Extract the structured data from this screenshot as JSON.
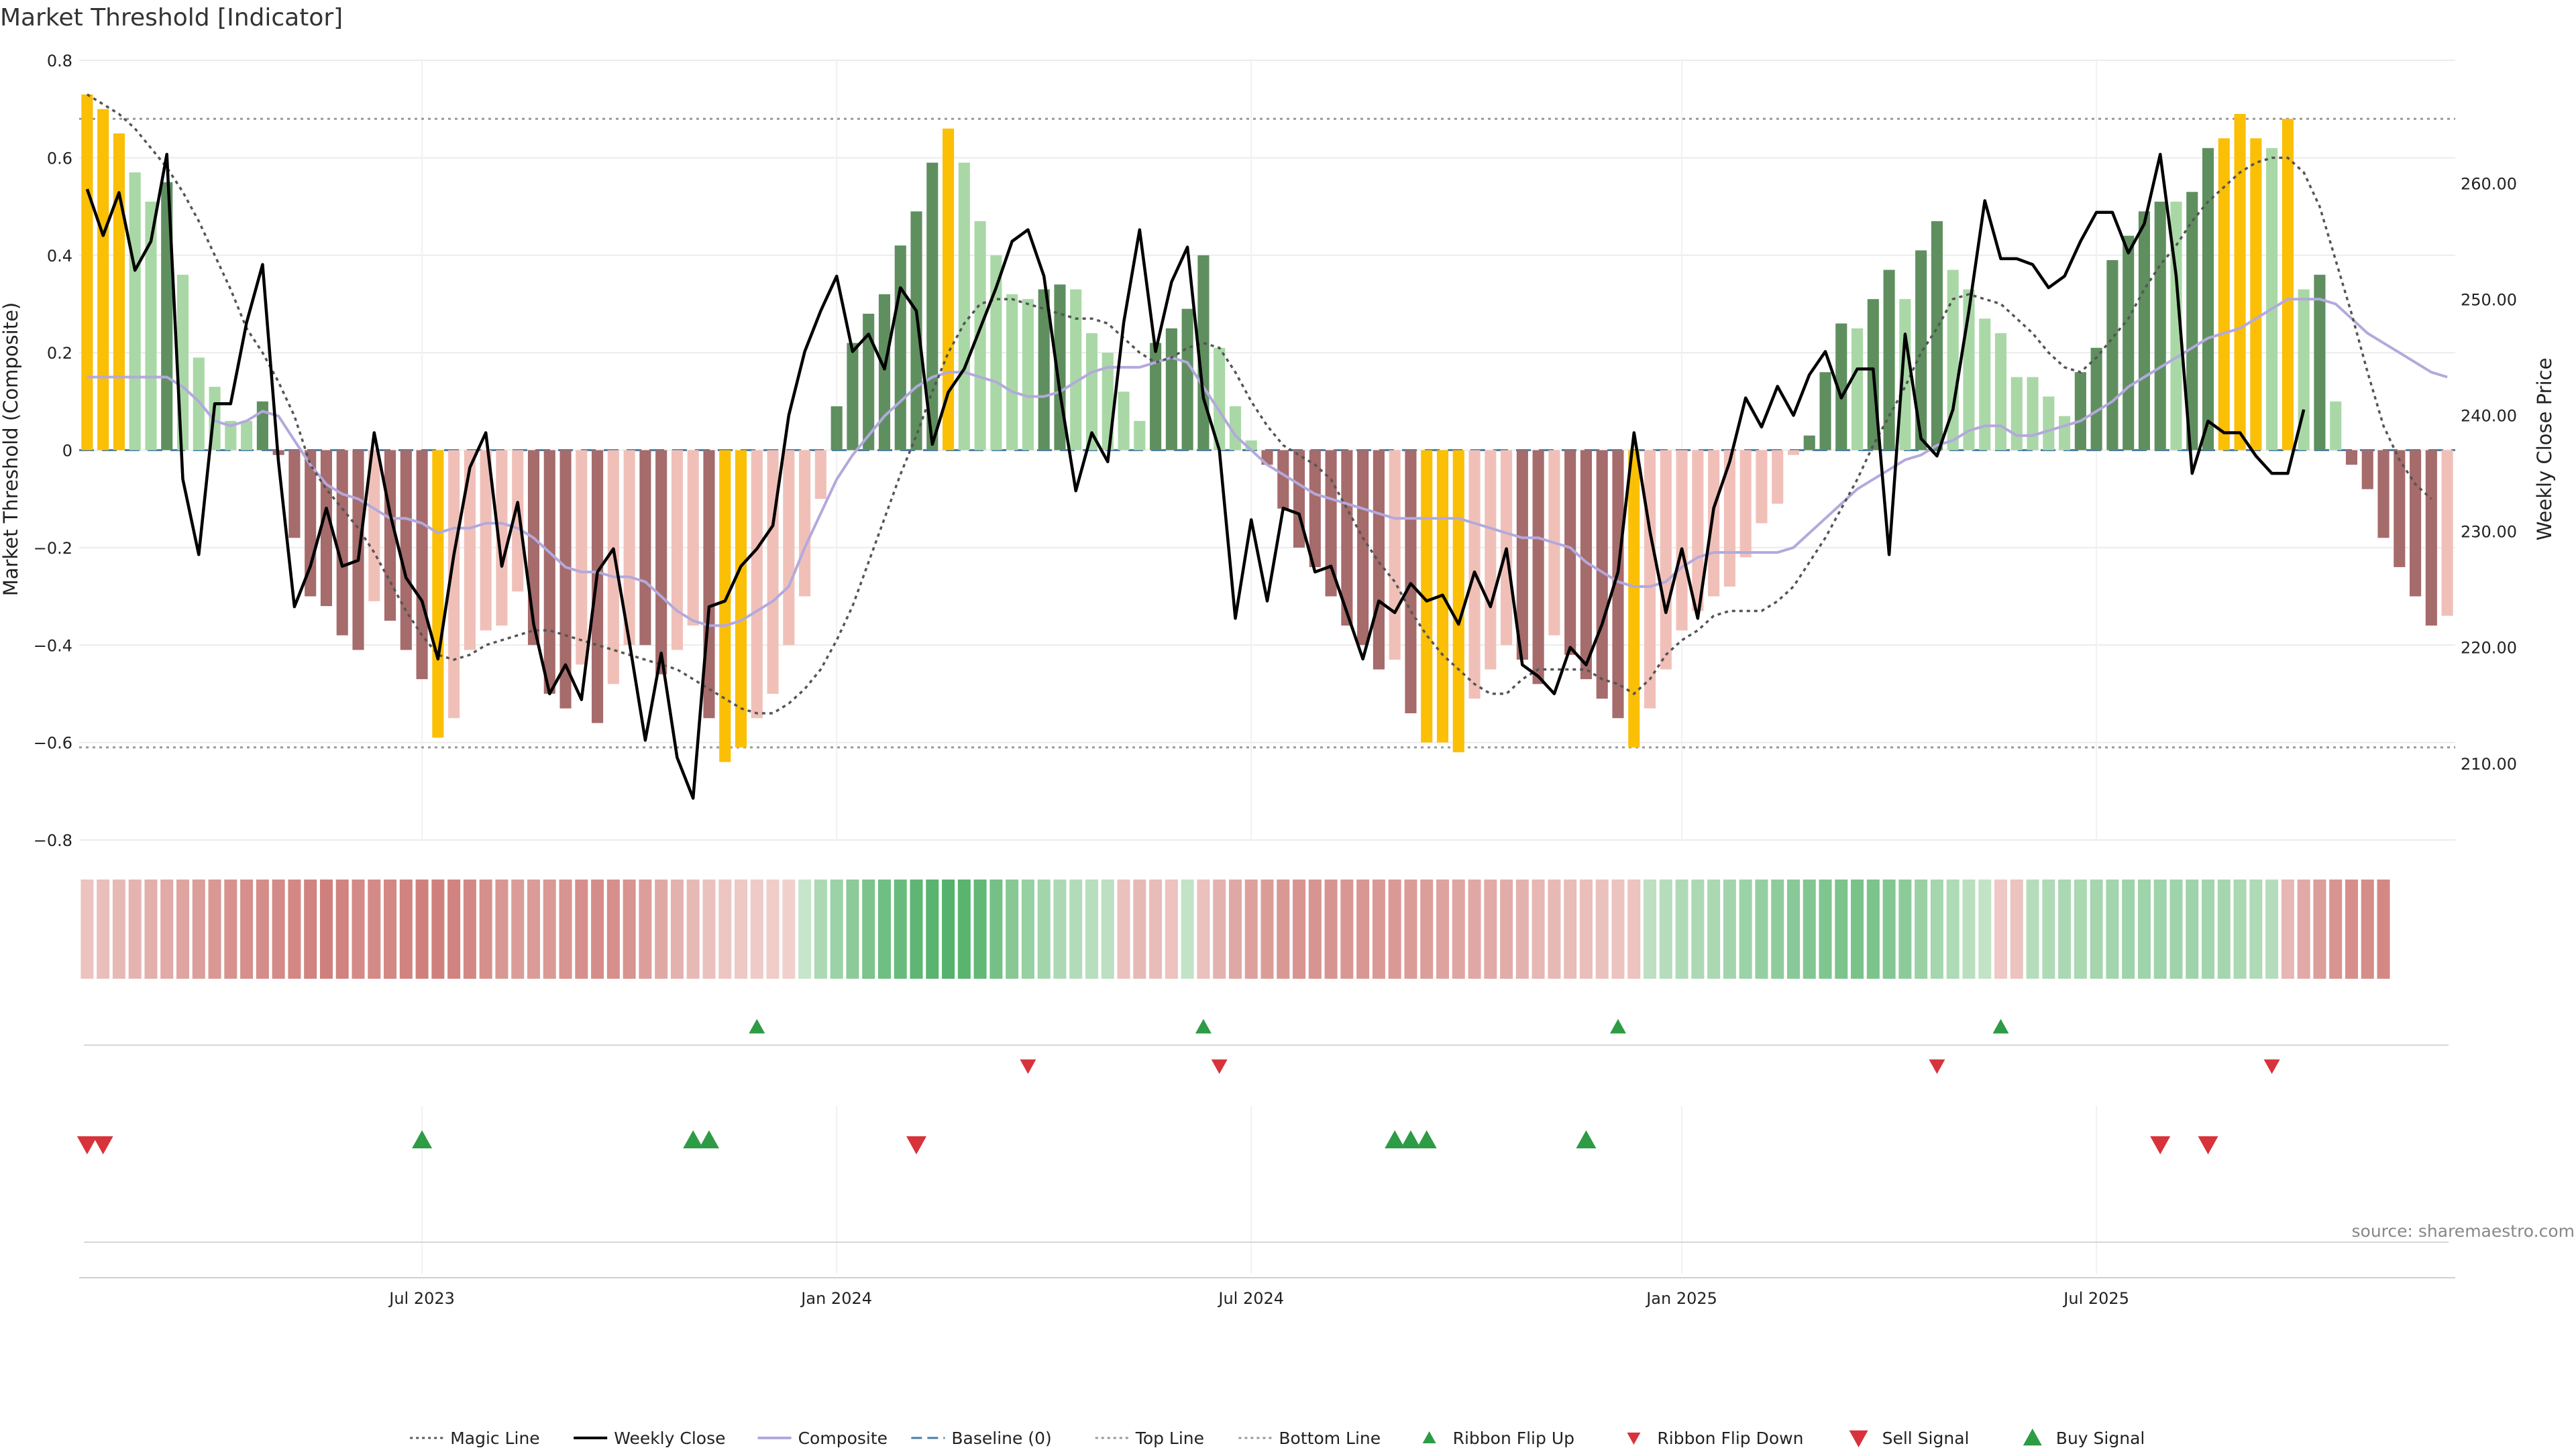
{
  "chart_data": {
    "type": "bar",
    "title": "Market Threshold [Indicator]",
    "ylabel": "Market Threshold (Composite)",
    "y2label": "Weekly Close Price",
    "source": "source: sharemaestro.com",
    "ylim": [
      -0.8,
      0.8
    ],
    "y2lim": [
      203.4,
      270.6
    ],
    "y_ticks": [
      -0.8,
      -0.6,
      -0.4,
      -0.2,
      0,
      0.2,
      0.4,
      0.6,
      0.8
    ],
    "y_tick_labels": [
      "−0.8",
      "−0.6",
      "−0.4",
      "−0.2",
      "0",
      "0.2",
      "0.4",
      "0.6",
      "0.8"
    ],
    "y2_ticks": [
      210,
      220,
      230,
      240,
      250,
      260
    ],
    "y2_tick_labels": [
      "210.00",
      "220.00",
      "230.00",
      "240.00",
      "250.00",
      "260.00"
    ],
    "x_start": "2023-02-06",
    "x_tick_dates": [
      "2023-07-03",
      "2024-01-01",
      "2024-07-01",
      "2025-01-06",
      "2025-07-07"
    ],
    "x_tick_labels": [
      "Jul 2023",
      "Jan 2024",
      "Jul 2024",
      "Jan 2025",
      "Jul 2025"
    ],
    "top_line": 0.68,
    "bottom_line": -0.61,
    "colors": {
      "pos_strong": "#5f8f5f",
      "pos_light": "#a9d8a6",
      "neg_strong": "#a66b6b",
      "neg_light": "#f0c0b8",
      "extreme": "#fbbf05",
      "close": "#000000",
      "composite": "#b3a9dc",
      "magic": "#555555",
      "baseline": "#4a7fa8",
      "thresholds": "#999999",
      "signal_up": "#2e9b45",
      "signal_down": "#d8323b"
    },
    "series": [
      {
        "name": "Market Threshold (Composite)",
        "values": [
          0.73,
          0.7,
          0.65,
          0.57,
          0.51,
          0.55,
          0.36,
          0.19,
          0.13,
          0.06,
          0.06,
          0.1,
          -0.01,
          -0.18,
          -0.3,
          -0.32,
          -0.38,
          -0.41,
          -0.31,
          -0.35,
          -0.41,
          -0.47,
          -0.59,
          -0.55,
          -0.41,
          -0.37,
          -0.36,
          -0.29,
          -0.4,
          -0.5,
          -0.53,
          -0.44,
          -0.56,
          -0.48,
          -0.4,
          -0.4,
          -0.46,
          -0.41,
          -0.36,
          -0.55,
          -0.64,
          -0.61,
          -0.55,
          -0.5,
          -0.4,
          -0.3,
          -0.1,
          0.09,
          0.22,
          0.28,
          0.32,
          0.42,
          0.49,
          0.59,
          0.66,
          0.59,
          0.47,
          0.4,
          0.32,
          0.31,
          0.33,
          0.34,
          0.33,
          0.24,
          0.2,
          0.12,
          0.06,
          0.22,
          0.25,
          0.29,
          0.4,
          0.21,
          0.09,
          0.02,
          -0.03,
          -0.12,
          -0.2,
          -0.24,
          -0.3,
          -0.36,
          -0.4,
          -0.45,
          -0.43,
          -0.54,
          -0.6,
          -0.6,
          -0.62,
          -0.51,
          -0.45,
          -0.4,
          -0.43,
          -0.48,
          -0.38,
          -0.42,
          -0.47,
          -0.51,
          -0.55,
          -0.61,
          -0.53,
          -0.45,
          -0.37,
          -0.33,
          -0.3,
          -0.28,
          -0.22,
          -0.15,
          -0.11,
          -0.01,
          0.03,
          0.16,
          0.26,
          0.25,
          0.31,
          0.37,
          0.31,
          0.41,
          0.47,
          0.37,
          0.33,
          0.27,
          0.24,
          0.15,
          0.15,
          0.11,
          0.07,
          0.16,
          0.21,
          0.39,
          0.44,
          0.49,
          0.51,
          0.51,
          0.53,
          0.62,
          0.64,
          0.69,
          0.64,
          0.62,
          0.68,
          0.33,
          0.36,
          0.1,
          -0.03,
          -0.08,
          -0.18,
          -0.24,
          -0.3,
          -0.36,
          -0.34
        ]
      },
      {
        "name": "Weekly Close",
        "values": [
          259.5,
          255.5,
          259.2,
          252.5,
          255.0,
          262.5,
          234.5,
          228.0,
          241.0,
          241.0,
          248.0,
          253.0,
          236.0,
          223.5,
          227.0,
          232.0,
          227.0,
          227.5,
          238.5,
          231.5,
          226.0,
          224.0,
          219.0,
          228.0,
          235.5,
          238.5,
          227.0,
          232.5,
          222.0,
          216.0,
          218.5,
          215.5,
          226.5,
          228.5,
          220.5,
          212.0,
          219.5,
          210.5,
          207.0,
          223.5,
          224.0,
          227.0,
          228.5,
          230.5,
          240.0,
          245.5,
          249.0,
          252.0,
          245.5,
          247.0,
          244.0,
          251.0,
          249.0,
          237.5,
          242.0,
          244.0,
          247.5,
          251.0,
          255.0,
          256.0,
          252.0,
          242.0,
          233.5,
          238.5,
          236.0,
          248.0,
          256.0,
          245.5,
          251.5,
          254.5,
          241.5,
          237.0,
          222.5,
          231.0,
          224.0,
          232.0,
          231.5,
          226.5,
          227.0,
          223.0,
          219.0,
          224.0,
          223.0,
          225.5,
          224.0,
          224.5,
          222.0,
          226.5,
          223.5,
          228.5,
          218.5,
          217.5,
          216.0,
          220.0,
          218.5,
          222.0,
          226.5,
          238.5,
          230.0,
          223.0,
          228.5,
          222.5,
          232.0,
          236.0,
          241.5,
          239.0,
          242.5,
          240.0,
          243.5,
          245.5,
          241.5,
          244.0,
          244.0,
          228.0,
          247.0,
          238.0,
          236.5,
          240.5,
          249.0,
          258.5,
          253.5,
          253.5,
          253.0,
          251.0,
          252.0,
          255.0,
          257.5,
          257.5,
          254.0,
          256.5,
          262.5,
          252.0,
          235.0,
          239.5,
          238.5,
          238.5,
          236.5,
          235.0,
          235.0,
          240.5
        ]
      },
      {
        "name": "Composite",
        "values": [
          0.15,
          0.15,
          0.15,
          0.15,
          0.15,
          0.15,
          0.13,
          0.1,
          0.06,
          0.05,
          0.06,
          0.08,
          0.07,
          0.02,
          -0.03,
          -0.07,
          -0.09,
          -0.1,
          -0.12,
          -0.14,
          -0.14,
          -0.15,
          -0.17,
          -0.16,
          -0.16,
          -0.15,
          -0.15,
          -0.16,
          -0.18,
          -0.21,
          -0.24,
          -0.25,
          -0.25,
          -0.26,
          -0.26,
          -0.27,
          -0.3,
          -0.33,
          -0.35,
          -0.36,
          -0.36,
          -0.35,
          -0.33,
          -0.31,
          -0.28,
          -0.2,
          -0.13,
          -0.06,
          -0.01,
          0.03,
          0.07,
          0.1,
          0.13,
          0.15,
          0.16,
          0.16,
          0.15,
          0.14,
          0.12,
          0.11,
          0.11,
          0.12,
          0.14,
          0.16,
          0.17,
          0.17,
          0.17,
          0.18,
          0.19,
          0.18,
          0.13,
          0.08,
          0.03,
          0.0,
          -0.03,
          -0.05,
          -0.07,
          -0.09,
          -0.1,
          -0.11,
          -0.12,
          -0.13,
          -0.14,
          -0.14,
          -0.14,
          -0.14,
          -0.14,
          -0.15,
          -0.16,
          -0.17,
          -0.18,
          -0.18,
          -0.19,
          -0.2,
          -0.23,
          -0.25,
          -0.27,
          -0.28,
          -0.28,
          -0.27,
          -0.24,
          -0.22,
          -0.21,
          -0.21,
          -0.21,
          -0.21,
          -0.21,
          -0.2,
          -0.17,
          -0.14,
          -0.11,
          -0.08,
          -0.06,
          -0.04,
          -0.02,
          -0.01,
          0.01,
          0.02,
          0.04,
          0.05,
          0.05,
          0.03,
          0.03,
          0.04,
          0.05,
          0.06,
          0.08,
          0.1,
          0.13,
          0.15,
          0.17,
          0.19,
          0.21,
          0.23,
          0.24,
          0.25,
          0.27,
          0.29,
          0.31,
          0.31,
          0.31,
          0.3,
          0.27,
          0.24,
          0.22,
          0.2,
          0.18,
          0.16,
          0.15
        ]
      },
      {
        "name": "Magic Line",
        "values": [
          0.73,
          0.71,
          0.69,
          0.66,
          0.62,
          0.58,
          0.53,
          0.47,
          0.4,
          0.33,
          0.25,
          0.2,
          0.14,
          0.07,
          -0.03,
          -0.08,
          -0.12,
          -0.16,
          -0.21,
          -0.27,
          -0.33,
          -0.38,
          -0.42,
          -0.43,
          -0.42,
          -0.4,
          -0.39,
          -0.38,
          -0.37,
          -0.37,
          -0.38,
          -0.39,
          -0.4,
          -0.41,
          -0.42,
          -0.43,
          -0.44,
          -0.45,
          -0.47,
          -0.49,
          -0.51,
          -0.53,
          -0.54,
          -0.54,
          -0.52,
          -0.49,
          -0.45,
          -0.39,
          -0.32,
          -0.23,
          -0.14,
          -0.05,
          0.03,
          0.12,
          0.2,
          0.26,
          0.3,
          0.31,
          0.31,
          0.3,
          0.29,
          0.28,
          0.27,
          0.27,
          0.26,
          0.23,
          0.2,
          0.18,
          0.19,
          0.21,
          0.22,
          0.21,
          0.16,
          0.1,
          0.05,
          0.01,
          -0.01,
          -0.03,
          -0.06,
          -0.12,
          -0.18,
          -0.23,
          -0.27,
          -0.33,
          -0.38,
          -0.42,
          -0.45,
          -0.48,
          -0.5,
          -0.5,
          -0.47,
          -0.45,
          -0.45,
          -0.45,
          -0.45,
          -0.47,
          -0.48,
          -0.5,
          -0.47,
          -0.42,
          -0.39,
          -0.37,
          -0.34,
          -0.33,
          -0.33,
          -0.33,
          -0.31,
          -0.28,
          -0.23,
          -0.18,
          -0.12,
          -0.06,
          0.01,
          0.07,
          0.13,
          0.2,
          0.25,
          0.31,
          0.32,
          0.31,
          0.3,
          0.27,
          0.24,
          0.2,
          0.17,
          0.16,
          0.19,
          0.23,
          0.27,
          0.33,
          0.38,
          0.42,
          0.47,
          0.51,
          0.54,
          0.57,
          0.59,
          0.6,
          0.6,
          0.57,
          0.5,
          0.39,
          0.28,
          0.16,
          0.05,
          -0.02,
          -0.07,
          -0.1
        ]
      }
    ],
    "ribbon": [
      -0.2,
      -0.24,
      -0.28,
      -0.32,
      -0.36,
      -0.4,
      -0.45,
      -0.5,
      -0.55,
      -0.6,
      -0.62,
      -0.64,
      -0.66,
      -0.68,
      -0.72,
      -0.74,
      -0.72,
      -0.66,
      -0.66,
      -0.68,
      -0.72,
      -0.74,
      -0.74,
      -0.72,
      -0.68,
      -0.62,
      -0.56,
      -0.52,
      -0.52,
      -0.54,
      -0.58,
      -0.62,
      -0.64,
      -0.62,
      -0.58,
      -0.5,
      -0.42,
      -0.34,
      -0.28,
      -0.22,
      -0.18,
      -0.16,
      -0.14,
      -0.12,
      -0.1,
      0.15,
      0.32,
      0.42,
      0.52,
      0.62,
      0.7,
      0.74,
      0.8,
      0.84,
      0.86,
      0.84,
      0.78,
      0.66,
      0.55,
      0.45,
      0.38,
      0.32,
      0.28,
      0.25,
      0.22,
      -0.22,
      -0.28,
      -0.26,
      -0.2,
      0.18,
      -0.22,
      -0.34,
      -0.42,
      -0.48,
      -0.52,
      -0.55,
      -0.58,
      -0.58,
      -0.58,
      -0.56,
      -0.56,
      -0.54,
      -0.54,
      -0.52,
      -0.5,
      -0.46,
      -0.44,
      -0.42,
      -0.4,
      -0.38,
      -0.34,
      -0.3,
      -0.28,
      -0.26,
      -0.24,
      -0.22,
      -0.2,
      -0.2,
      0.22,
      0.26,
      0.3,
      0.32,
      0.34,
      0.38,
      0.42,
      0.46,
      0.5,
      0.54,
      0.58,
      0.6,
      0.62,
      0.64,
      0.62,
      0.58,
      0.52,
      0.44,
      0.36,
      0.3,
      0.24,
      0.18,
      -0.16,
      -0.2,
      0.26,
      0.3,
      0.33,
      0.34,
      0.36,
      0.38,
      0.4,
      0.4,
      0.4,
      0.4,
      0.4,
      0.38,
      0.36,
      0.34,
      0.3,
      0.26,
      -0.3,
      -0.4,
      -0.5,
      -0.58,
      -0.62,
      -0.64,
      -0.68
    ],
    "ribbon_flips": [
      {
        "date": "2023-11-27",
        "dir": "up"
      },
      {
        "date": "2024-03-25",
        "dir": "down"
      },
      {
        "date": "2024-06-10",
        "dir": "up"
      },
      {
        "date": "2024-06-17",
        "dir": "down"
      },
      {
        "date": "2024-12-09",
        "dir": "up"
      },
      {
        "date": "2025-04-28",
        "dir": "down"
      },
      {
        "date": "2025-05-26",
        "dir": "up"
      },
      {
        "date": "2025-09-22",
        "dir": "down"
      }
    ],
    "signals": [
      {
        "date": "2023-02-06",
        "type": "sell"
      },
      {
        "date": "2023-02-13",
        "type": "sell"
      },
      {
        "date": "2023-07-03",
        "type": "buy"
      },
      {
        "date": "2023-10-30",
        "type": "buy"
      },
      {
        "date": "2023-11-06",
        "type": "buy"
      },
      {
        "date": "2024-02-05",
        "type": "sell"
      },
      {
        "date": "2024-09-02",
        "type": "buy"
      },
      {
        "date": "2024-09-09",
        "type": "buy"
      },
      {
        "date": "2024-09-16",
        "type": "buy"
      },
      {
        "date": "2024-11-25",
        "type": "buy"
      },
      {
        "date": "2025-08-04",
        "type": "sell"
      },
      {
        "date": "2025-08-25",
        "type": "sell"
      }
    ],
    "legend_position": "bottom-center",
    "legend": [
      {
        "label": "Magic Line",
        "kind": "line-dotted",
        "color": "#555555"
      },
      {
        "label": "Weekly Close",
        "kind": "line",
        "color": "#000000"
      },
      {
        "label": "Composite",
        "kind": "line",
        "color": "#b3a9dc"
      },
      {
        "label": "Baseline (0)",
        "kind": "line-dashed",
        "color": "#4a7fa8"
      },
      {
        "label": "Top Line",
        "kind": "line-dotted",
        "color": "#999999"
      },
      {
        "label": "Bottom Line",
        "kind": "line-dotted",
        "color": "#999999"
      },
      {
        "label": "Ribbon Flip Up",
        "kind": "tri-up-small",
        "color": "#2e9b45"
      },
      {
        "label": "Ribbon Flip Down",
        "kind": "tri-down-small",
        "color": "#d8323b"
      },
      {
        "label": "Sell Signal",
        "kind": "tri-down",
        "color": "#d8323b"
      },
      {
        "label": "Buy Signal",
        "kind": "tri-up",
        "color": "#2e9b45"
      }
    ]
  }
}
